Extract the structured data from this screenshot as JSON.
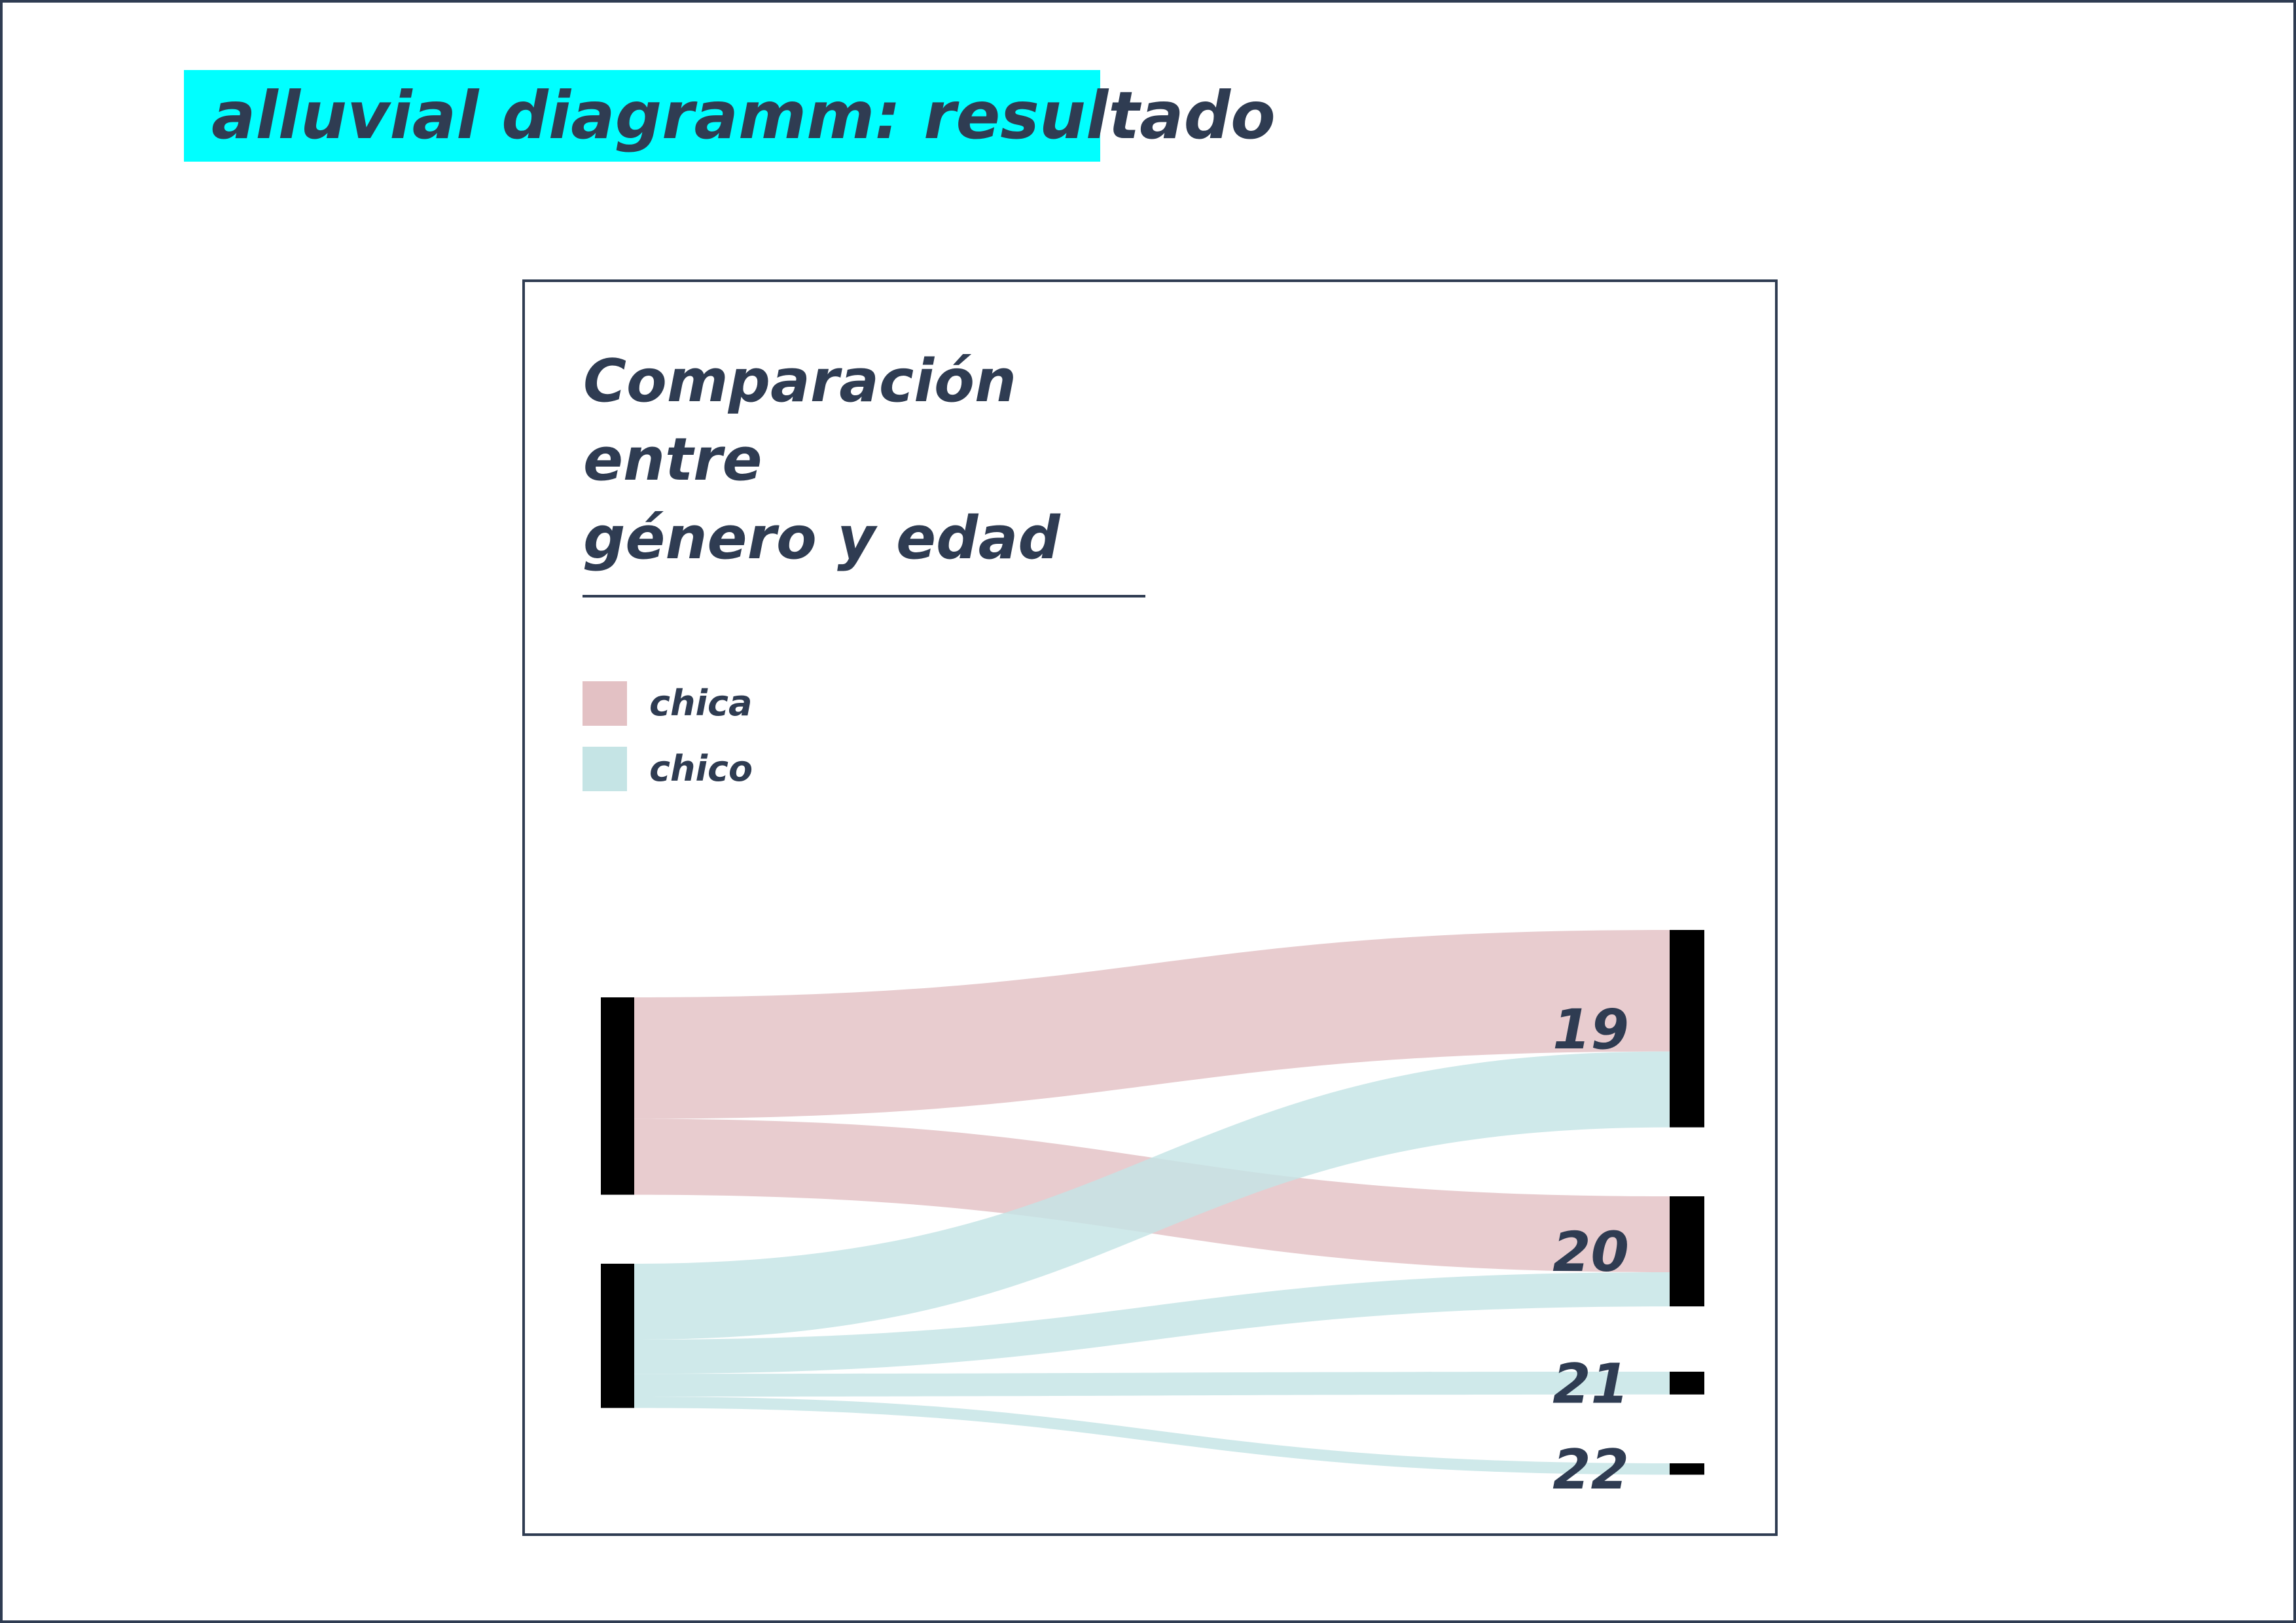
{
  "slide": {
    "title": "alluvial diagramm: resultado"
  },
  "chart": {
    "title_lines": [
      "Comparación",
      "entre",
      "género y edad"
    ]
  },
  "legend": [
    {
      "label": "chica",
      "color": "#e3c1c4"
    },
    {
      "label": "chico",
      "color": "#c5e4e5"
    }
  ],
  "colors": {
    "accent": "#00ffff",
    "text": "#2f3c52",
    "node": "#000000"
  },
  "chart_data": {
    "type": "alluvial",
    "source_nodes": [
      "chica",
      "chico"
    ],
    "target_nodes": [
      "19",
      "20",
      "21",
      "22"
    ],
    "flows": [
      {
        "source": "chica",
        "target": "19",
        "value": 16
      },
      {
        "source": "chica",
        "target": "20",
        "value": 10
      },
      {
        "source": "chico",
        "target": "19",
        "value": 10
      },
      {
        "source": "chico",
        "target": "20",
        "value": 4.5
      },
      {
        "source": "chico",
        "target": "21",
        "value": 3
      },
      {
        "source": "chico",
        "target": "22",
        "value": 1.5
      }
    ]
  }
}
